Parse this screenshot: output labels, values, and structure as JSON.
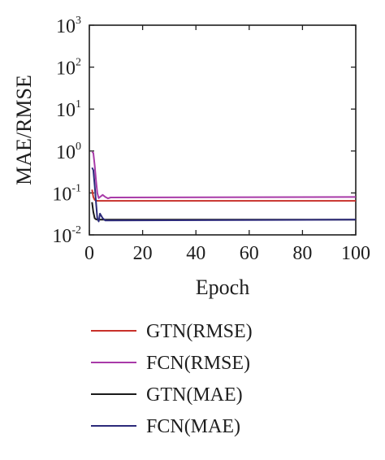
{
  "chart_data": {
    "type": "line",
    "title": "",
    "xlabel": "Epoch",
    "ylabel": "MAE/RMSE",
    "xlim": [
      0,
      100
    ],
    "ylim": [
      0.01,
      1000
    ],
    "yscale": "log",
    "grid": false,
    "legend_position": "bottom",
    "x_ticks": [
      0,
      20,
      40,
      60,
      80,
      100
    ],
    "x_tick_labels": [
      "0",
      "20",
      "40",
      "60",
      "80",
      "100"
    ],
    "y_ticks": [
      0.01,
      0.1,
      1,
      10,
      100,
      1000
    ],
    "y_tick_labels": [
      {
        "base": "10",
        "exp": "-2"
      },
      {
        "base": "10",
        "exp": "-1"
      },
      {
        "base": "10",
        "exp": "0"
      },
      {
        "base": "10",
        "exp": "1"
      },
      {
        "base": "10",
        "exp": "2"
      },
      {
        "base": "10",
        "exp": "3"
      }
    ],
    "series": [
      {
        "name": "GTN(RMSE)",
        "color": "#c8302a",
        "x": [
          1,
          1.5,
          2,
          2.5,
          3,
          100
        ],
        "y": [
          0.12,
          0.08,
          0.068,
          0.066,
          0.065,
          0.065
        ]
      },
      {
        "name": "FCN(RMSE)",
        "color": "#a83aa8",
        "x": [
          1,
          1.5,
          2,
          2.5,
          3,
          3.5,
          4,
          5,
          6,
          7,
          8,
          100
        ],
        "y": [
          0.95,
          0.9,
          0.45,
          0.2,
          0.1,
          0.075,
          0.08,
          0.09,
          0.08,
          0.074,
          0.078,
          0.08
        ]
      },
      {
        "name": "GTN(MAE)",
        "color": "#1a1a1a",
        "x": [
          1,
          1.5,
          2,
          2.5,
          3,
          100
        ],
        "y": [
          0.06,
          0.035,
          0.025,
          0.0235,
          0.023,
          0.023
        ]
      },
      {
        "name": "FCN(MAE)",
        "color": "#2c2a7a",
        "x": [
          1,
          1.5,
          2,
          2.5,
          3,
          3.5,
          4,
          5,
          6,
          7,
          100
        ],
        "y": [
          0.4,
          0.35,
          0.15,
          0.06,
          0.025,
          0.021,
          0.032,
          0.025,
          0.022,
          0.022,
          0.023
        ]
      }
    ]
  }
}
